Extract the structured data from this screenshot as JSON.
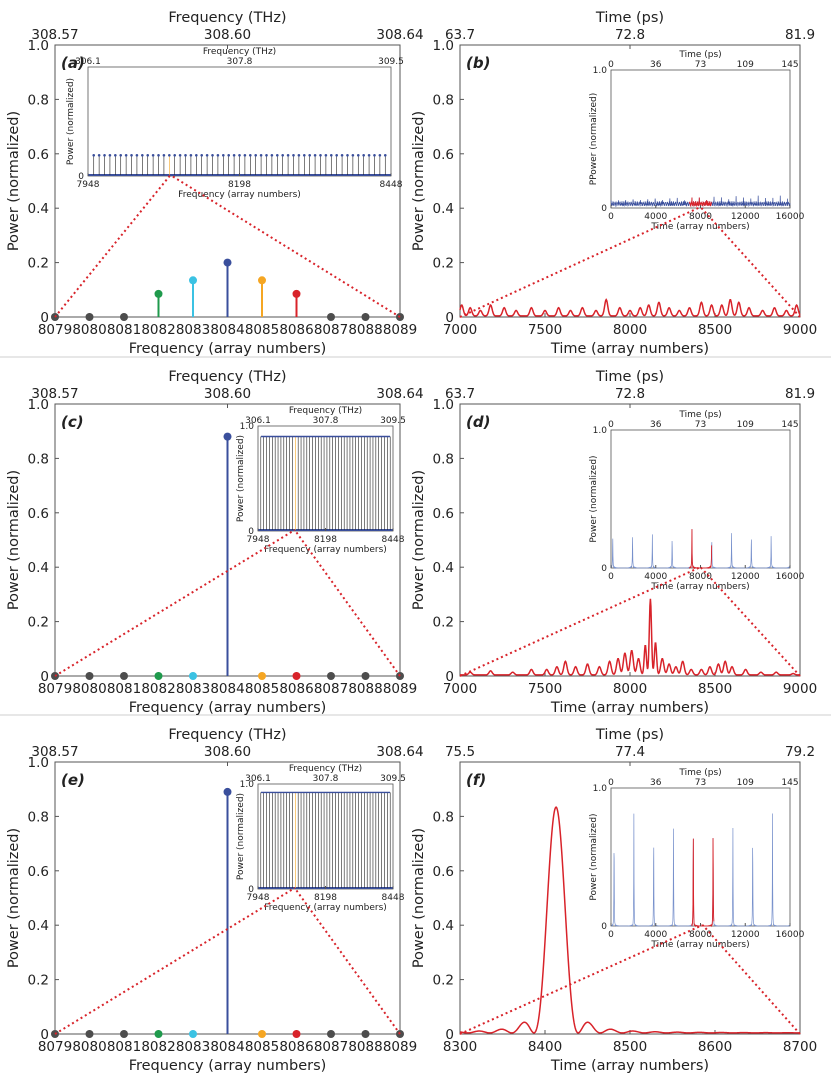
{
  "separators": true,
  "colors": {
    "blue": "#3a4f9c",
    "red": "#d8232a",
    "green": "#1f9a4c",
    "cyan": "#3bc2e3",
    "orange": "#f5a623",
    "gray": "#4d4d4d",
    "comb_blue": "#3a4f9c",
    "spike_blue": "#7891cc",
    "dotted": "#d8232a"
  },
  "chart_data": [
    {
      "id": "a",
      "type": "stem",
      "panel_label": "(a)",
      "xlabel": "Frequency (array numbers)",
      "ylabel": "Power (normalized)",
      "top_axis_label": "Frequency (THz)",
      "top_ticks": [
        "308.57",
        "308.60",
        "308.64"
      ],
      "xlim": [
        8079,
        8089
      ],
      "ylim": [
        0,
        1
      ],
      "xticks": [
        8079,
        8080,
        8081,
        8082,
        8083,
        8084,
        8085,
        8086,
        8087,
        8088,
        8089
      ],
      "yticks": [
        0,
        0.2,
        0.4,
        0.6,
        0.8,
        1.0
      ],
      "ytick_labels": [
        "0",
        "0.2",
        "0.4",
        "0.6",
        "0.8",
        "1.0"
      ],
      "points": [
        {
          "x": 8079,
          "y": 0,
          "c": "gray"
        },
        {
          "x": 8080,
          "y": 0,
          "c": "gray"
        },
        {
          "x": 8081,
          "y": 0,
          "c": "gray"
        },
        {
          "x": 8082,
          "y": 0.085,
          "c": "green"
        },
        {
          "x": 8083,
          "y": 0.135,
          "c": "cyan"
        },
        {
          "x": 8084,
          "y": 0.2,
          "c": "blue"
        },
        {
          "x": 8085,
          "y": 0.135,
          "c": "orange"
        },
        {
          "x": 8086,
          "y": 0.085,
          "c": "red"
        },
        {
          "x": 8087,
          "y": 0,
          "c": "gray"
        },
        {
          "x": 8088,
          "y": 0,
          "c": "gray"
        },
        {
          "x": 8089,
          "y": 0,
          "c": "gray"
        }
      ],
      "inset": {
        "type": "comb",
        "xlim": [
          7948,
          8448
        ],
        "ylim": [
          0,
          1
        ],
        "xticks": [
          7948,
          8198,
          8448
        ],
        "yticks": [
          0
        ],
        "ylabel": "Power (normalized)",
        "xlabel": "Frequency (array numbers)",
        "top_label": "Frequency (THz)",
        "top_ticks": [
          "306.1",
          "307.8",
          "309.5"
        ],
        "comb": {
          "count": 55,
          "height": 0.19,
          "highlight_x": 8084
        }
      }
    },
    {
      "id": "b",
      "type": "line",
      "panel_label": "(b)",
      "xlabel": "Time (array numbers)",
      "ylabel": "Power (normalized)",
      "top_axis_label": "Time (ps)",
      "top_ticks": [
        "63.7",
        "72.8",
        "81.9"
      ],
      "xlim": [
        7000,
        9000
      ],
      "ylim": [
        0,
        1
      ],
      "xticks": [
        7000,
        7500,
        8000,
        8500,
        9000
      ],
      "yticks": [
        0,
        0.2,
        0.4,
        0.6,
        0.8,
        1.0
      ],
      "ytick_labels": [
        "0",
        "0.2",
        "0.4",
        "0.6",
        "0.8",
        "1.0"
      ],
      "series": [
        {
          "name": "",
          "color": "red",
          "peaks": [
            [
              7010,
              0.04
            ],
            [
              7060,
              0.03
            ],
            [
              7120,
              0.02
            ],
            [
              7180,
              0.04
            ],
            [
              7260,
              0.03
            ],
            [
              7330,
              0.02
            ],
            [
              7420,
              0.03
            ],
            [
              7500,
              0.02
            ],
            [
              7580,
              0.03
            ],
            [
              7650,
              0.02
            ],
            [
              7720,
              0.03
            ],
            [
              7800,
              0.02
            ],
            [
              7860,
              0.06
            ],
            [
              7940,
              0.03
            ],
            [
              8000,
              0.02
            ],
            [
              8060,
              0.03
            ],
            [
              8110,
              0.04
            ],
            [
              8170,
              0.05
            ],
            [
              8230,
              0.03
            ],
            [
              8290,
              0.02
            ],
            [
              8350,
              0.03
            ],
            [
              8420,
              0.05
            ],
            [
              8480,
              0.04
            ],
            [
              8540,
              0.04
            ],
            [
              8590,
              0.06
            ],
            [
              8640,
              0.05
            ],
            [
              8700,
              0.03
            ],
            [
              8780,
              0.02
            ],
            [
              8850,
              0.03
            ],
            [
              8920,
              0.02
            ],
            [
              8980,
              0.04
            ]
          ]
        }
      ],
      "inset": {
        "type": "noise",
        "xlim": [
          0,
          16000
        ],
        "ylim": [
          0,
          1
        ],
        "xticks": [
          0,
          4000,
          8000,
          12000,
          16000
        ],
        "yticks": [
          0,
          1.0
        ],
        "ylabel": "PPower (normalized)",
        "xlabel": "Time (array numbers)",
        "top_label": "Time (ps)",
        "top_ticks": [
          "0",
          "36",
          "73",
          "109",
          "145"
        ],
        "noise_level": 0.05,
        "highlight": [
          7000,
          9000
        ]
      }
    },
    {
      "id": "c",
      "type": "stem",
      "panel_label": "(c)",
      "xlabel": "Frequency (array numbers)",
      "ylabel": "Power (normalized)",
      "top_axis_label": "Frequency (THz)",
      "top_ticks": [
        "308.57",
        "308.60",
        "308.64"
      ],
      "xlim": [
        8079,
        8089
      ],
      "ylim": [
        0,
        1
      ],
      "xticks": [
        8079,
        8080,
        8081,
        8082,
        8083,
        8084,
        8085,
        8086,
        8087,
        8088,
        8089
      ],
      "yticks": [
        0,
        0.2,
        0.4,
        0.6,
        0.8,
        1.0
      ],
      "ytick_labels": [
        "0",
        "0.2",
        "0.4",
        "0.6",
        "0.8",
        "1.0"
      ],
      "points": [
        {
          "x": 8079,
          "y": 0,
          "c": "gray"
        },
        {
          "x": 8080,
          "y": 0,
          "c": "gray"
        },
        {
          "x": 8081,
          "y": 0,
          "c": "gray"
        },
        {
          "x": 8082,
          "y": 0,
          "c": "green"
        },
        {
          "x": 8083,
          "y": 0,
          "c": "cyan"
        },
        {
          "x": 8084,
          "y": 0.88,
          "c": "blue"
        },
        {
          "x": 8085,
          "y": 0,
          "c": "orange"
        },
        {
          "x": 8086,
          "y": 0,
          "c": "red"
        },
        {
          "x": 8087,
          "y": 0,
          "c": "gray"
        },
        {
          "x": 8088,
          "y": 0,
          "c": "gray"
        },
        {
          "x": 8089,
          "y": 0,
          "c": "gray"
        }
      ],
      "inset": {
        "type": "comb",
        "xlim": [
          7948,
          8448
        ],
        "ylim": [
          0,
          1
        ],
        "xticks": [
          7948,
          8198,
          8448
        ],
        "yticks": [
          0,
          1.0
        ],
        "ylabel": "Power (normalized)",
        "xlabel": "Frequency (array numbers)",
        "top_label": "Frequency (THz)",
        "top_ticks": [
          "306.1",
          "307.8",
          "309.5"
        ],
        "comb": {
          "count": 46,
          "height": 0.9,
          "highlight_x": 8084
        }
      }
    },
    {
      "id": "d",
      "type": "line",
      "panel_label": "(d)",
      "xlabel": "Time (array numbers)",
      "ylabel": "Power (normalized)",
      "top_axis_label": "Time (ps)",
      "top_ticks": [
        "63.7",
        "72.8",
        "81.9"
      ],
      "xlim": [
        7000,
        9000
      ],
      "ylim": [
        0,
        1
      ],
      "xticks": [
        7000,
        7500,
        8000,
        8500,
        9000
      ],
      "yticks": [
        0,
        0.2,
        0.4,
        0.6,
        0.8,
        1.0
      ],
      "ytick_labels": [
        "0",
        "0.2",
        "0.4",
        "0.6",
        "0.8",
        "1.0"
      ],
      "series": [
        {
          "name": "",
          "color": "red",
          "peaks": [
            [
              7060,
              0.01
            ],
            [
              7180,
              0.015
            ],
            [
              7310,
              0.01
            ],
            [
              7420,
              0.02
            ],
            [
              7510,
              0.02
            ],
            [
              7570,
              0.03
            ],
            [
              7620,
              0.05
            ],
            [
              7680,
              0.03
            ],
            [
              7750,
              0.04
            ],
            [
              7820,
              0.03
            ],
            [
              7880,
              0.05
            ],
            [
              7930,
              0.06
            ],
            [
              7970,
              0.08
            ],
            [
              8010,
              0.09
            ],
            [
              8050,
              0.06
            ],
            [
              8090,
              0.11
            ],
            [
              8120,
              0.28
            ],
            [
              8150,
              0.12
            ],
            [
              8190,
              0.06
            ],
            [
              8230,
              0.04
            ],
            [
              8270,
              0.03
            ],
            [
              8310,
              0.05
            ],
            [
              8360,
              0.02
            ],
            [
              8420,
              0.02
            ],
            [
              8470,
              0.03
            ],
            [
              8520,
              0.04
            ],
            [
              8560,
              0.05
            ],
            [
              8600,
              0.03
            ],
            [
              8680,
              0.02
            ],
            [
              8770,
              0.01
            ],
            [
              8860,
              0.01
            ],
            [
              8960,
              0.005
            ]
          ]
        }
      ],
      "inset": {
        "type": "spikes",
        "xlim": [
          0,
          16000
        ],
        "ylim": [
          0,
          1
        ],
        "xticks": [
          0,
          4000,
          8000,
          12000,
          16000
        ],
        "yticks": [
          0,
          1.0
        ],
        "ylabel": "Power (normalized)",
        "xlabel": "Time (array numbers)",
        "top_label": "Time (ps)",
        "top_ticks": [
          "0",
          "36",
          "73",
          "109",
          "145"
        ],
        "spike_period": 1770,
        "spike_start": 155,
        "spike_height": 0.27,
        "highlight": [
          7000,
          9000
        ]
      }
    },
    {
      "id": "e",
      "type": "stem",
      "panel_label": "(e)",
      "xlabel": "Frequency (array numbers)",
      "ylabel": "Power (normalized)",
      "top_axis_label": "Frequency (THz)",
      "top_ticks": [
        "308.57",
        "308.60",
        "308.64"
      ],
      "xlim": [
        8079,
        8089
      ],
      "ylim": [
        0,
        1
      ],
      "xticks": [
        8079,
        8080,
        8081,
        8082,
        8083,
        8084,
        8085,
        8086,
        8087,
        8088,
        8089
      ],
      "yticks": [
        0,
        0.2,
        0.4,
        0.6,
        0.8,
        1.0
      ],
      "ytick_labels": [
        "0",
        "0.2",
        "0.4",
        "0.6",
        "0.8",
        "1.0"
      ],
      "points": [
        {
          "x": 8079,
          "y": 0,
          "c": "gray"
        },
        {
          "x": 8080,
          "y": 0,
          "c": "gray"
        },
        {
          "x": 8081,
          "y": 0,
          "c": "gray"
        },
        {
          "x": 8082,
          "y": 0,
          "c": "green"
        },
        {
          "x": 8083,
          "y": 0,
          "c": "cyan"
        },
        {
          "x": 8084,
          "y": 0.89,
          "c": "blue"
        },
        {
          "x": 8085,
          "y": 0,
          "c": "orange"
        },
        {
          "x": 8086,
          "y": 0,
          "c": "red"
        },
        {
          "x": 8087,
          "y": 0,
          "c": "gray"
        },
        {
          "x": 8088,
          "y": 0,
          "c": "gray"
        },
        {
          "x": 8089,
          "y": 0,
          "c": "gray"
        }
      ],
      "inset": {
        "type": "comb",
        "xlim": [
          7948,
          8448
        ],
        "ylim": [
          0,
          1
        ],
        "xticks": [
          7948,
          8198,
          8448
        ],
        "yticks": [
          0,
          1.0
        ],
        "ylabel": "Power (normalized)",
        "xlabel": "Frequency (array numbers)",
        "top_label": "Frequency (THz)",
        "top_ticks": [
          "306.1",
          "307.8",
          "309.5"
        ],
        "comb": {
          "count": 46,
          "height": 0.92,
          "highlight_x": 8084
        }
      }
    },
    {
      "id": "f",
      "type": "line",
      "panel_label": "(f)",
      "xlabel": "Time (array numbers)",
      "ylabel": "Power (normalized)",
      "top_axis_label": "Time (ps)",
      "top_ticks": [
        "75.5",
        "77.4",
        "79.2"
      ],
      "xlim": [
        8300,
        8700
      ],
      "ylim": [
        0,
        1
      ],
      "xticks": [
        8300,
        8400,
        8500,
        8600,
        8700
      ],
      "yticks": [
        0,
        0.2,
        0.4,
        0.6,
        0.8
      ],
      "ytick_labels": [
        "0",
        "0.2",
        "0.4",
        "0.6",
        "0.8"
      ],
      "series": [
        {
          "name": "",
          "color": "red",
          "sinc": {
            "center": 8413,
            "amplitude": 0.83,
            "width": 26,
            "floor": 0.004
          }
        }
      ],
      "inset": {
        "type": "spikes",
        "xlim": [
          0,
          16000
        ],
        "ylim": [
          0,
          1
        ],
        "xticks": [
          0,
          4000,
          8000,
          12000,
          16000
        ],
        "yticks": [
          0,
          1.0
        ],
        "ylabel": "Power (normalized)",
        "xlabel": "Time (array numbers)",
        "top_label": "Time (ps)",
        "top_ticks": [
          "0",
          "36",
          "73",
          "109",
          "145"
        ],
        "spike_period": 1770,
        "spike_start": 275,
        "spike_height": 0.82,
        "highlight": [
          7200,
          9200
        ]
      }
    }
  ]
}
